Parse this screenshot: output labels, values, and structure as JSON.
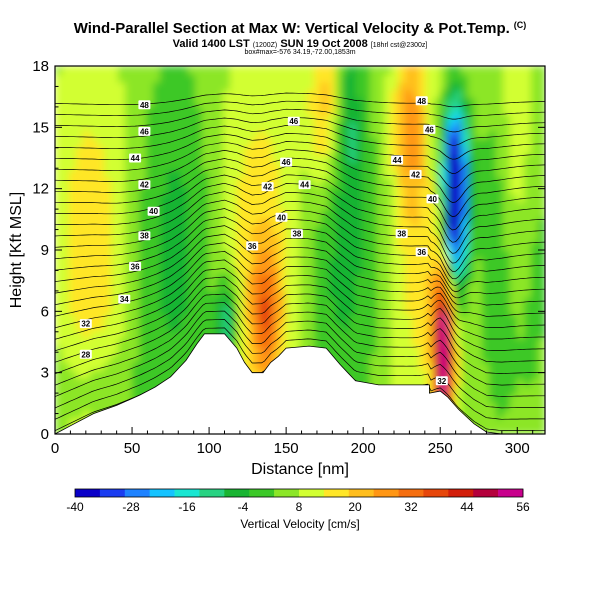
{
  "header": {
    "title": "Wind-Parallel Section at Max W: Vertical Velocity & Pot.Temp.",
    "title_tag": "(C)",
    "valid_line": "Valid 1400 LST",
    "valid_small1": "(1200Z)",
    "valid_date": "SUN 19 Oct 2008",
    "valid_small2": "[18hrl cst@2300z]",
    "info_line": "box#max=-576 34.19,-72.00,1853m"
  },
  "chart_data": {
    "type": "heatmap",
    "title": "Wind-Parallel Section at Max W: Vertical Velocity & Pot.Temp.",
    "xlabel": "Distance [nm]",
    "ylabel": "Height [Kft MSL]",
    "xlim": [
      0,
      318
    ],
    "ylim": [
      0,
      18
    ],
    "xticks": [
      "0",
      "50",
      "100",
      "150",
      "200",
      "250",
      "300"
    ],
    "yticks": [
      "0",
      "3",
      "6",
      "9",
      "12",
      "15",
      "18"
    ],
    "colorbar": {
      "label": "Vertical Velocity [cm/s]",
      "tick_labels": [
        "-40",
        "-28",
        "-16",
        "-4",
        "8",
        "20",
        "32",
        "44",
        "56"
      ],
      "bins": [
        -40,
        -34,
        -28,
        -22,
        -16,
        -10,
        -4,
        2,
        8,
        14,
        20,
        26,
        32,
        38,
        44,
        50,
        56
      ],
      "colors": [
        "#0a00c8",
        "#1a3cf0",
        "#1e82ff",
        "#15c3ff",
        "#19e6d2",
        "#28d282",
        "#19b432",
        "#3cc828",
        "#8ce628",
        "#d2ff32",
        "#ffe628",
        "#ffbe1e",
        "#ff9614",
        "#f56e0f",
        "#e6460a",
        "#d21e0a",
        "#b4003c",
        "#c8008c"
      ]
    },
    "terrain_nm_kft": [
      [
        0,
        0
      ],
      [
        10,
        0.4
      ],
      [
        25,
        1.0
      ],
      [
        40,
        1.4
      ],
      [
        55,
        1.9
      ],
      [
        65,
        2.3
      ],
      [
        75,
        2.8
      ],
      [
        85,
        3.6
      ],
      [
        92,
        4.4
      ],
      [
        97,
        4.9
      ],
      [
        110,
        4.9
      ],
      [
        118,
        4.2
      ],
      [
        123,
        3.5
      ],
      [
        128,
        3.0
      ],
      [
        135,
        3.0
      ],
      [
        140,
        3.5
      ],
      [
        145,
        3.8
      ],
      [
        150,
        4.2
      ],
      [
        165,
        4.3
      ],
      [
        176,
        4.2
      ],
      [
        185,
        3.4
      ],
      [
        190,
        3.0
      ],
      [
        195,
        2.6
      ],
      [
        210,
        2.4
      ],
      [
        230,
        2.4
      ],
      [
        243,
        2.4
      ],
      [
        243,
        2.0
      ],
      [
        250,
        2.1
      ],
      [
        255,
        1.8
      ],
      [
        262,
        1.2
      ],
      [
        272,
        0.5
      ],
      [
        280,
        0.1
      ],
      [
        290,
        0
      ],
      [
        318,
        0
      ]
    ],
    "w_features": [
      {
        "x": 260,
        "y": 11.0,
        "w": -40,
        "note": "strong downdraft core"
      },
      {
        "x": 252,
        "y": 3.5,
        "w": 56,
        "note": "strong updraft core"
      },
      {
        "x": 137,
        "y": 5.8,
        "w": 26,
        "note": "updraft"
      },
      {
        "x": 112,
        "y": 5.5,
        "w": -16,
        "note": "downdraft"
      },
      {
        "x": 175,
        "y": 16.0,
        "w": 26,
        "note": "updraft aloft"
      },
      {
        "x": 230,
        "y": 15.0,
        "w": 26,
        "note": "updraft aloft"
      }
    ],
    "theta_labels": [
      {
        "x": 58,
        "y": 16.1,
        "text": "48"
      },
      {
        "x": 58,
        "y": 14.8,
        "text": "46"
      },
      {
        "x": 52,
        "y": 13.5,
        "text": "44"
      },
      {
        "x": 58,
        "y": 12.2,
        "text": "42"
      },
      {
        "x": 64,
        "y": 10.9,
        "text": "40"
      },
      {
        "x": 58,
        "y": 9.7,
        "text": "38"
      },
      {
        "x": 52,
        "y": 8.2,
        "text": "36"
      },
      {
        "x": 45,
        "y": 6.6,
        "text": "34"
      },
      {
        "x": 20,
        "y": 5.4,
        "text": "32"
      },
      {
        "x": 20,
        "y": 3.9,
        "text": "28"
      },
      {
        "x": 155,
        "y": 15.3,
        "text": "46"
      },
      {
        "x": 150,
        "y": 13.3,
        "text": "46"
      },
      {
        "x": 162,
        "y": 12.2,
        "text": "44"
      },
      {
        "x": 138,
        "y": 12.1,
        "text": "42"
      },
      {
        "x": 147,
        "y": 10.6,
        "text": "40"
      },
      {
        "x": 157,
        "y": 9.8,
        "text": "38"
      },
      {
        "x": 128,
        "y": 9.2,
        "text": "36"
      },
      {
        "x": 238,
        "y": 16.3,
        "text": "48"
      },
      {
        "x": 243,
        "y": 14.9,
        "text": "46"
      },
      {
        "x": 222,
        "y": 13.4,
        "text": "44"
      },
      {
        "x": 234,
        "y": 12.7,
        "text": "42"
      },
      {
        "x": 245,
        "y": 11.5,
        "text": "40"
      },
      {
        "x": 225,
        "y": 9.8,
        "text": "38"
      },
      {
        "x": 238,
        "y": 8.9,
        "text": "36"
      },
      {
        "x": 251,
        "y": 2.6,
        "text": "32"
      }
    ]
  }
}
